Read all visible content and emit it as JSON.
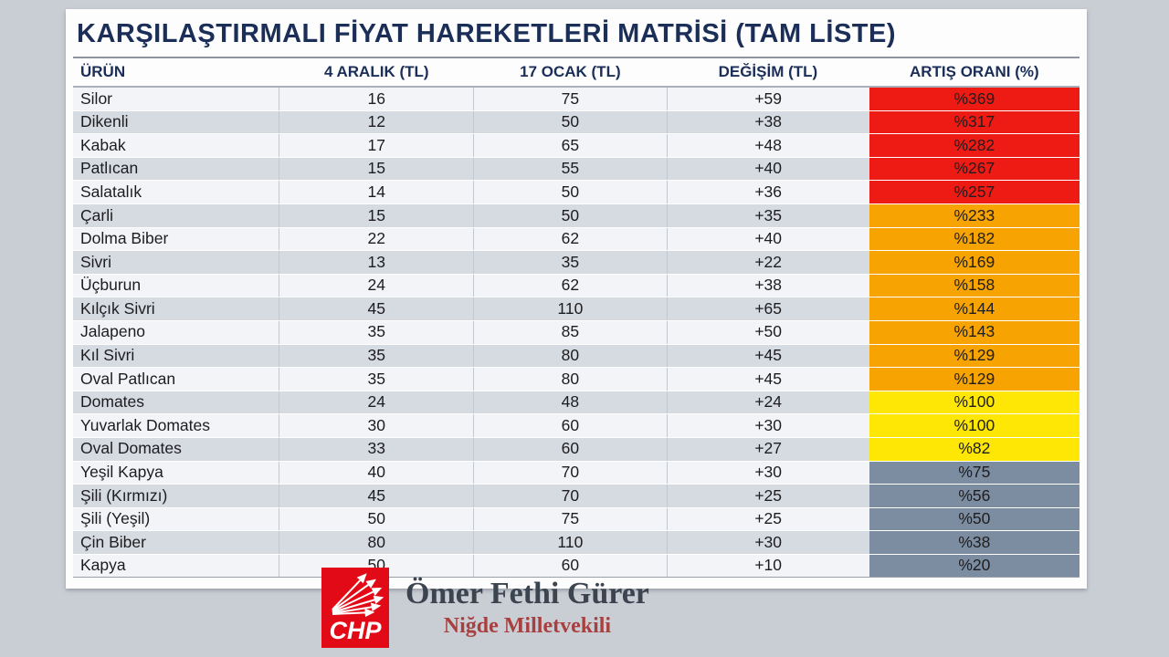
{
  "page_background": "#c9cdd4",
  "chart_data": {
    "type": "table",
    "title": "KARŞILAŞTIRMALI FİYAT HAREKETLERİ MATRİSİ (TAM LİSTE)",
    "columns": [
      "ÜRÜN",
      "4 ARALIK (TL)",
      "17 OCAK (TL)",
      "DEĞİŞİM (TL)",
      "ARTIŞ ORANI (%)"
    ],
    "rows": [
      {
        "product": "Silor",
        "dec4": "16",
        "jan17": "75",
        "change": "+59",
        "increase": "%369",
        "level": "red"
      },
      {
        "product": "Dikenli",
        "dec4": "12",
        "jan17": "50",
        "change": "+38",
        "increase": "%317",
        "level": "red"
      },
      {
        "product": "Kabak",
        "dec4": "17",
        "jan17": "65",
        "change": "+48",
        "increase": "%282",
        "level": "red"
      },
      {
        "product": "Patlıcan",
        "dec4": "15",
        "jan17": "55",
        "change": "+40",
        "increase": "%267",
        "level": "red"
      },
      {
        "product": "Salatalık",
        "dec4": "14",
        "jan17": "50",
        "change": "+36",
        "increase": "%257",
        "level": "red"
      },
      {
        "product": "Çarli",
        "dec4": "15",
        "jan17": "50",
        "change": "+35",
        "increase": "%233",
        "level": "orange"
      },
      {
        "product": "Dolma Biber",
        "dec4": "22",
        "jan17": "62",
        "change": "+40",
        "increase": "%182",
        "level": "orange"
      },
      {
        "product": "Sivri",
        "dec4": "13",
        "jan17": "35",
        "change": "+22",
        "increase": "%169",
        "level": "orange"
      },
      {
        "product": "Üçburun",
        "dec4": "24",
        "jan17": "62",
        "change": "+38",
        "increase": "%158",
        "level": "orange"
      },
      {
        "product": "Kılçık Sivri",
        "dec4": "45",
        "jan17": "110",
        "change": "+65",
        "increase": "%144",
        "level": "orange"
      },
      {
        "product": "Jalapeno",
        "dec4": "35",
        "jan17": "85",
        "change": "+50",
        "increase": "%143",
        "level": "orange"
      },
      {
        "product": "Kıl Sivri",
        "dec4": "35",
        "jan17": "80",
        "change": "+45",
        "increase": "%129",
        "level": "orange"
      },
      {
        "product": "Oval Patlıcan",
        "dec4": "35",
        "jan17": "80",
        "change": "+45",
        "increase": "%129",
        "level": "orange"
      },
      {
        "product": "Domates",
        "dec4": "24",
        "jan17": "48",
        "change": "+24",
        "increase": "%100",
        "level": "yellow"
      },
      {
        "product": "Yuvarlak Domates",
        "dec4": "30",
        "jan17": "60",
        "change": "+30",
        "increase": "%100",
        "level": "yellow"
      },
      {
        "product": "Oval Domates",
        "dec4": "33",
        "jan17": "60",
        "change": "+27",
        "increase": "%82",
        "level": "yellow"
      },
      {
        "product": "Yeşil Kapya",
        "dec4": "40",
        "jan17": "70",
        "change": "+30",
        "increase": "%75",
        "level": "slate"
      },
      {
        "product": "Şili (Kırmızı)",
        "dec4": "45",
        "jan17": "70",
        "change": "+25",
        "increase": "%56",
        "level": "slate"
      },
      {
        "product": "Şili (Yeşil)",
        "dec4": "50",
        "jan17": "75",
        "change": "+25",
        "increase": "%50",
        "level": "slate"
      },
      {
        "product": "Çin Biber",
        "dec4": "80",
        "jan17": "110",
        "change": "+30",
        "increase": "%38",
        "level": "slate"
      },
      {
        "product": "Kapya",
        "dec4": "50",
        "jan17": "60",
        "change": "+10",
        "increase": "%20",
        "level": "slate"
      }
    ],
    "level_colors": {
      "red": "#ee1b15",
      "orange": "#f7a402",
      "yellow": "#ffe705",
      "slate": "#7c8da1"
    },
    "layout_hints": {
      "row_stripe_odd": "#f3f4f7",
      "row_stripe_even": "#d6dae1",
      "header_color": "#1a2e58"
    }
  },
  "footer": {
    "logo_text": "CHP",
    "logo_color": "#e30a17",
    "name": "Ömer Fethi Gürer",
    "subtitle": "Niğde Milletvekili"
  }
}
